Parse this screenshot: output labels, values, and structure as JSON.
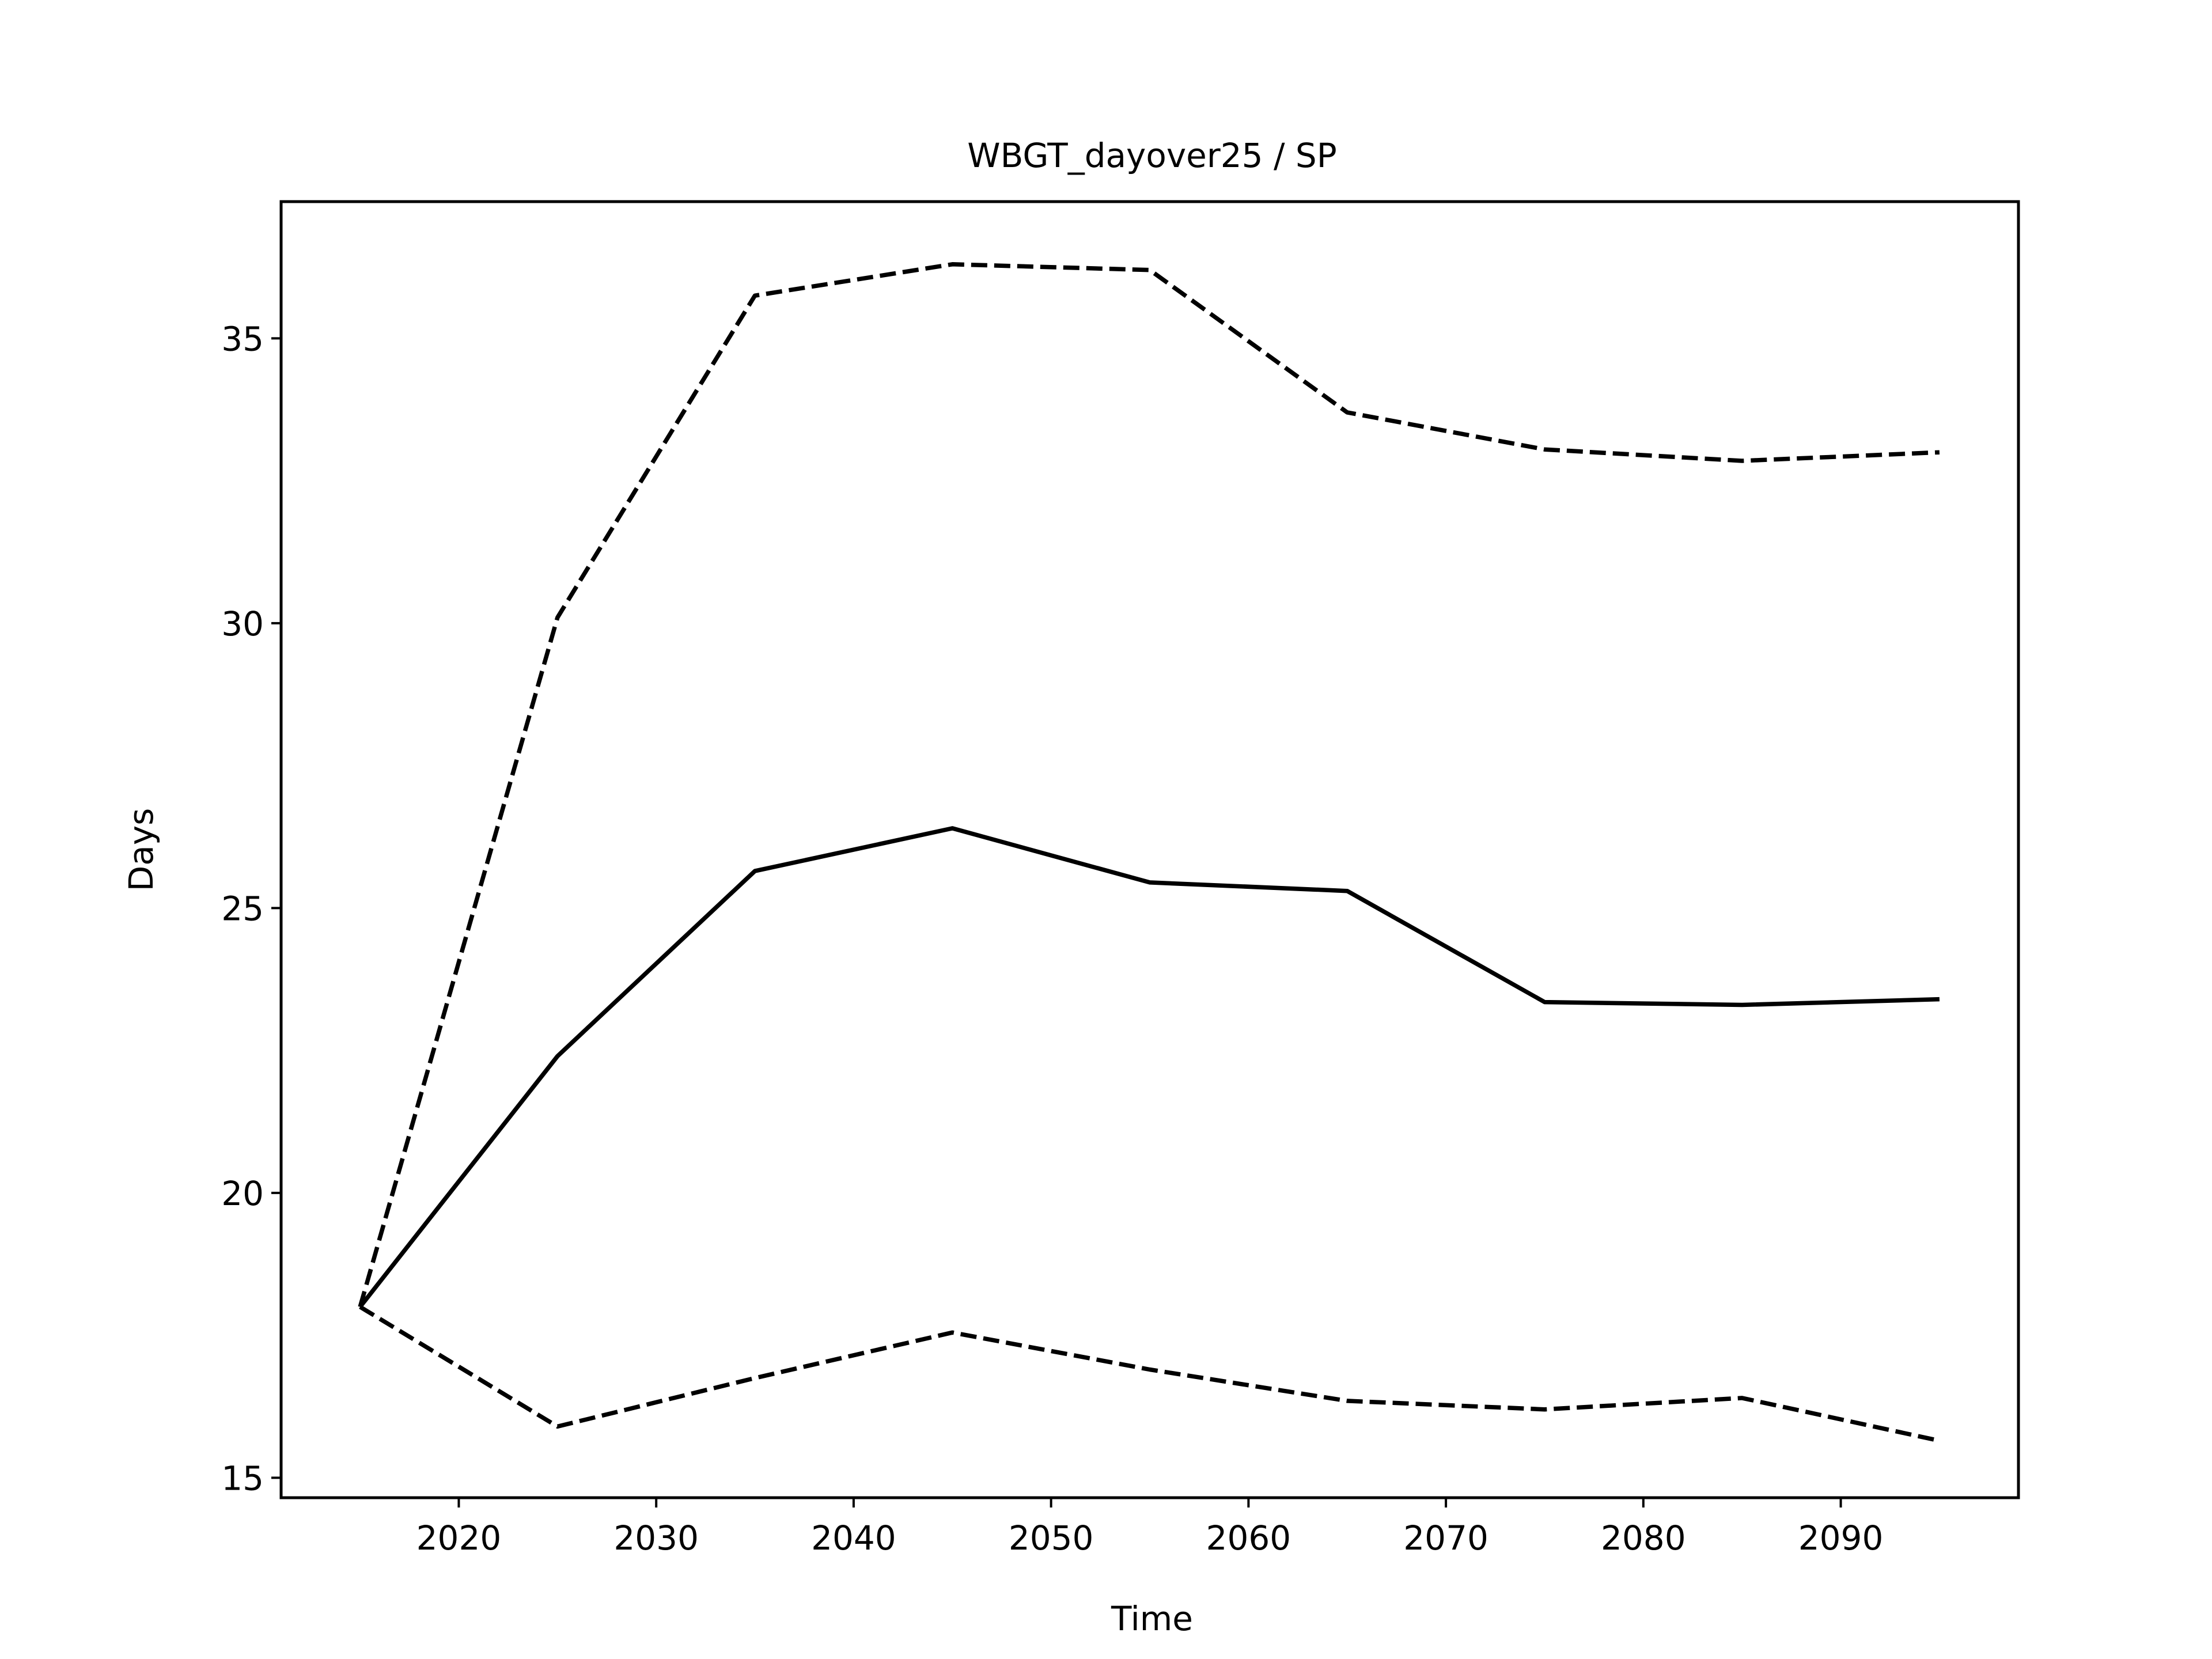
{
  "chart_data": {
    "type": "line",
    "title": "WBGT_dayover25 / SP",
    "xlabel": "Time",
    "ylabel": "Days",
    "xlim": [
      2011.0,
      2099.0
    ],
    "ylim": [
      14.65,
      37.4
    ],
    "xticks": [
      2020,
      2030,
      2040,
      2050,
      2060,
      2070,
      2080,
      2090
    ],
    "yticks": [
      15,
      20,
      25,
      30,
      35
    ],
    "grid": false,
    "legend": "none",
    "x": [
      2015,
      2025,
      2035,
      2045,
      2055,
      2065,
      2075,
      2085,
      2095
    ],
    "series": [
      {
        "style": "dashed",
        "color": "#000000",
        "values": [
          18.0,
          30.1,
          35.75,
          36.3,
          36.2,
          33.7,
          33.05,
          32.85,
          33.0
        ]
      },
      {
        "style": "solid",
        "color": "#000000",
        "values": [
          18.0,
          22.4,
          25.65,
          26.4,
          25.45,
          25.3,
          23.35,
          23.3,
          23.4
        ]
      },
      {
        "style": "dashed",
        "color": "#000000",
        "values": [
          18.0,
          15.9,
          16.75,
          17.55,
          16.9,
          16.35,
          16.2,
          16.4,
          15.65
        ]
      }
    ]
  }
}
